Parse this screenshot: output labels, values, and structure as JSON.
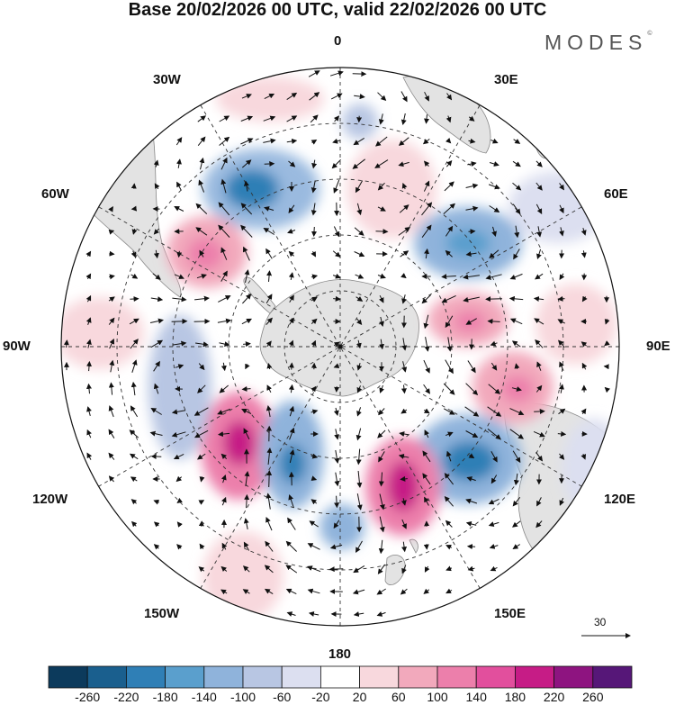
{
  "title": "Base 20/02/2026 00 UTC, valid 22/02/2026 00 UTC",
  "brand": "MODES",
  "brand_mark": "©",
  "longitude_labels": {
    "lon_0": "0",
    "lon_30e": "30E",
    "lon_60e": "60E",
    "lon_90e": "90E",
    "lon_120e": "120E",
    "lon_150e": "150E",
    "lon_180": "180",
    "lon_150w": "150W",
    "lon_120w": "120W",
    "lon_90w": "90W",
    "lon_60w": "60W",
    "lon_30w": "30W"
  },
  "reference_vector": {
    "value": "30"
  },
  "colorbar": {
    "tick_labels": [
      "-260",
      "-220",
      "-180",
      "-140",
      "-100",
      "-60",
      "-20",
      "20",
      "60",
      "100",
      "140",
      "180",
      "220",
      "260"
    ],
    "colors": [
      "#0c3a5c",
      "#1a5f8e",
      "#2f7fb6",
      "#5a9fcd",
      "#8fb3db",
      "#b8c6e3",
      "#dcdff0",
      "#ffffff",
      "#f8d8dd",
      "#f2a9bc",
      "#ec7fab",
      "#e24f9d",
      "#c61c86",
      "#8e1480",
      "#561778"
    ]
  },
  "colors": {
    "land": "#e3e3e3",
    "coast": "#888888",
    "grid": "#333333",
    "arrow": "#111111"
  }
}
